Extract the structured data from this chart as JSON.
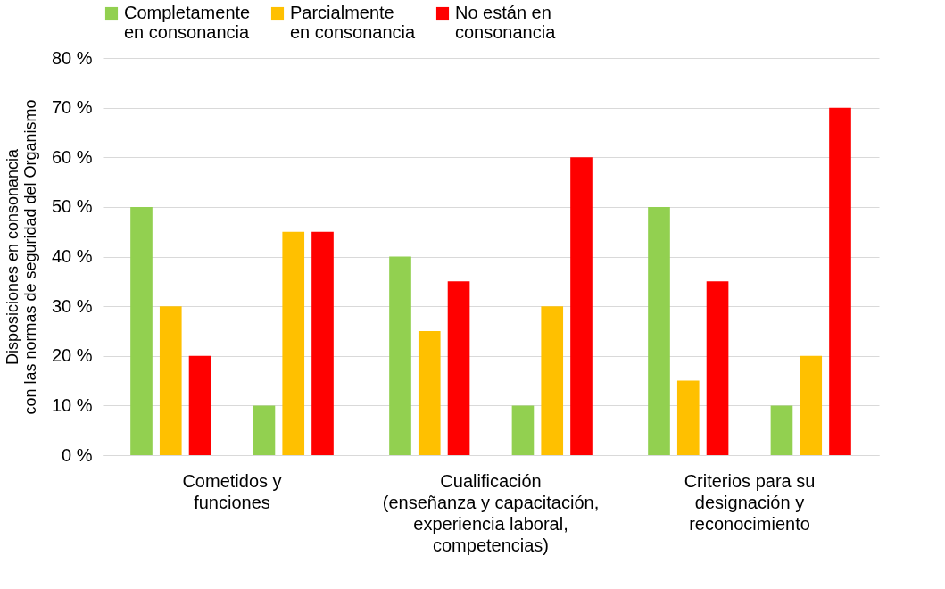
{
  "chart_data": {
    "type": "bar",
    "ylabel": "Disposiciones en consonancia\ncon las normas de seguridad del Organismo",
    "categories": [
      "Cometidos y\nfunciones",
      "Cualificación\n(enseñanza y capacitación,\nexperiencia laboral,\ncompetencias)",
      "Criterios para su\ndesignación y\nreconocimiento"
    ],
    "series": [
      {
        "name": "Completamente\nen consonancia",
        "color": "#92d050",
        "values": [
          50,
          40,
          50
        ]
      },
      {
        "name": "Parcialmente\nen consonancia",
        "color": "#ffc000",
        "values": [
          30,
          25,
          15
        ]
      },
      {
        "name": "No están en\nconsonancia",
        "color": "#ff0000",
        "values": [
          20,
          35,
          35
        ]
      },
      {
        "color": "#92d050",
        "values": [
          10,
          10,
          10
        ]
      },
      {
        "color": "#ffc000",
        "values": [
          45,
          30,
          20
        ]
      },
      {
        "color": "#ff0000",
        "values": [
          45,
          60,
          70
        ]
      }
    ],
    "ylim": [
      0,
      80
    ],
    "yticks": [
      {
        "value": 0,
        "label": "0 %"
      },
      {
        "value": 10,
        "label": "10 %"
      },
      {
        "value": 20,
        "label": "20 %"
      },
      {
        "value": 30,
        "label": "30 %"
      },
      {
        "value": 40,
        "label": "40 %"
      },
      {
        "value": 50,
        "label": "50 %"
      },
      {
        "value": 60,
        "label": "60 %"
      },
      {
        "value": 70,
        "label": "70 %"
      },
      {
        "value": 80,
        "label": "80 %"
      }
    ],
    "grid": "y",
    "legend": "top"
  }
}
